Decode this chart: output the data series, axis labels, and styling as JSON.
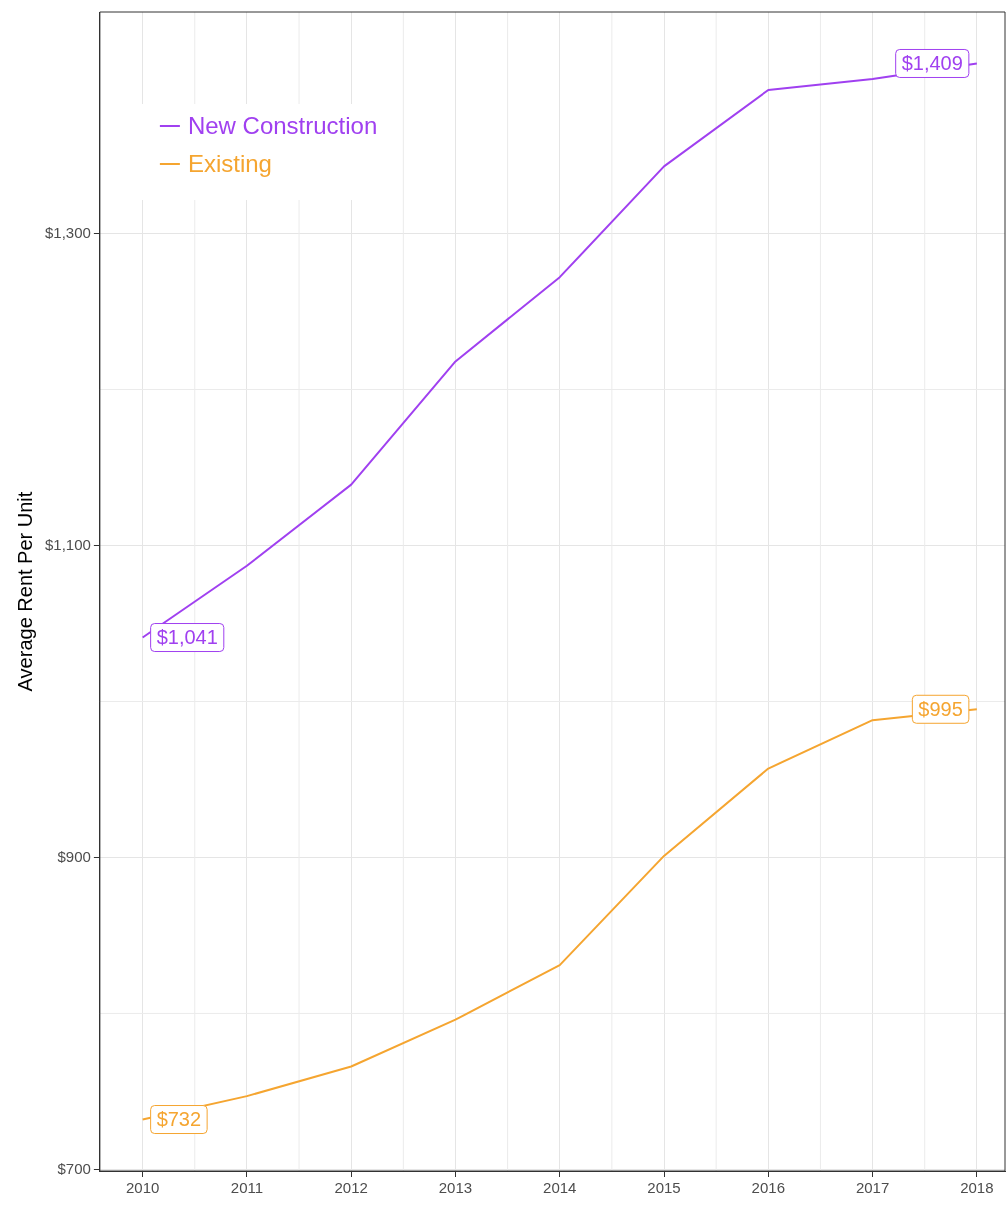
{
  "chart_data": {
    "type": "line",
    "ylabel": "Average Rent Per Unit",
    "x": [
      2010,
      2011,
      2012,
      2013,
      2014,
      2015,
      2016,
      2017,
      2018
    ],
    "series": [
      {
        "name": "New Construction",
        "color": "#a040f0",
        "values": [
          1041,
          1087,
          1139,
          1218,
          1272,
          1343,
          1392,
          1399,
          1409
        ],
        "value_labels": [
          "$1,041",
          null,
          null,
          null,
          null,
          null,
          null,
          null,
          "$1,409"
        ]
      },
      {
        "name": "Existing",
        "color": "#f5a530",
        "values": [
          732,
          747,
          766,
          796,
          831,
          901,
          957,
          988,
          995
        ],
        "value_labels": [
          "$732",
          null,
          null,
          null,
          null,
          null,
          null,
          null,
          "$995"
        ]
      }
    ],
    "xlim": [
      2009.59,
      2018.27
    ],
    "xticks": [
      2010,
      2011,
      2012,
      2013,
      2014,
      2015,
      2016,
      2017,
      2018
    ],
    "ylim": [
      699,
      1442
    ],
    "yticks": [
      {
        "value": 700,
        "label": "$700"
      },
      {
        "value": 900,
        "label": "$900"
      },
      {
        "value": 1100,
        "label": "$1,100"
      },
      {
        "value": 1300,
        "label": "$1,300"
      }
    ],
    "grid": true,
    "legend": "top left",
    "marker": "none",
    "line_style": "solid"
  }
}
